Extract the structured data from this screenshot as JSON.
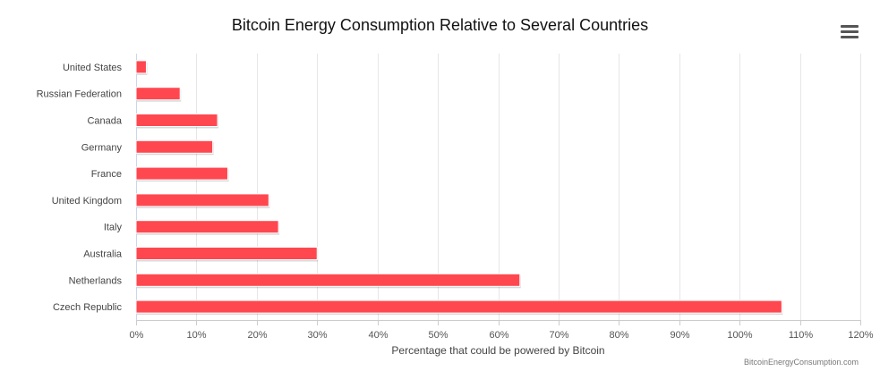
{
  "chart_data": {
    "type": "bar",
    "orientation": "horizontal",
    "title": "Bitcoin Energy Consumption Relative to Several Countries",
    "categories": [
      "United States",
      "Russian Federation",
      "Canada",
      "Germany",
      "France",
      "United Kingdom",
      "Italy",
      "Australia",
      "Netherlands",
      "Czech Republic"
    ],
    "values": [
      1.7,
      7.3,
      13.5,
      12.7,
      15.2,
      22.0,
      23.6,
      30.0,
      63.6,
      107.0
    ],
    "value_unit": "%",
    "xlabel": "Percentage that could be powered by Bitcoin",
    "ylabel": "",
    "xlim": [
      0,
      120
    ],
    "xticks": [
      0,
      10,
      20,
      30,
      40,
      50,
      60,
      70,
      80,
      90,
      100,
      110,
      120
    ],
    "xtick_labels": [
      "0%",
      "10%",
      "20%",
      "30%",
      "40%",
      "50%",
      "60%",
      "70%",
      "80%",
      "90%",
      "100%",
      "110%",
      "120%"
    ],
    "grid": "vertical",
    "legend": "none",
    "bar_color": "#ff474f",
    "gridline_color": "#e6e6e6"
  },
  "menu": {
    "icon": "hamburger-menu-icon"
  },
  "credit": "BitcoinEnergyConsumption.com"
}
